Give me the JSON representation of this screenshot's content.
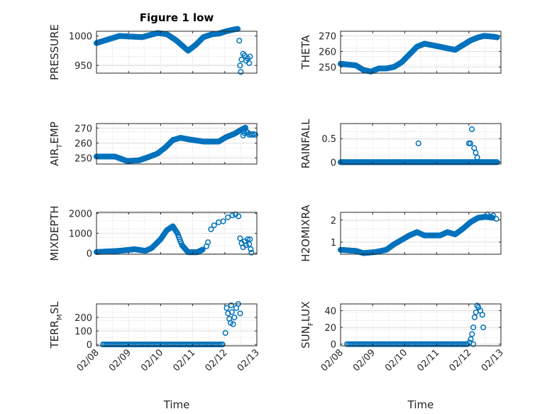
{
  "figure": {
    "background": "#ffffff",
    "marker_color": "#0072BD"
  },
  "chart_data": [
    {
      "type": "scatter",
      "title": "Figure 1 low",
      "ylabel": "PRESSURE",
      "ylabel_main": "PRESSURE",
      "ylabel_sub": "",
      "ylabel_tail": "",
      "ylim": [
        937,
        1008
      ],
      "yticks": [
        950,
        1000
      ],
      "ytick_labels": [
        "950",
        "1000"
      ],
      "xticks": [],
      "xlabel": "",
      "grid": true,
      "series": [
        {
          "dense": [
            [
              0,
              988
            ],
            [
              1.5,
              1000
            ],
            [
              3,
              998
            ],
            [
              4,
              1005
            ],
            [
              4.6,
              1003
            ],
            [
              5.2,
              993
            ],
            [
              6,
              975
            ],
            [
              6.5,
              985
            ],
            [
              7,
              998
            ],
            [
              7.6,
              1003
            ],
            [
              8,
              1004
            ],
            [
              8.5,
              1008
            ],
            [
              9,
              1011
            ],
            [
              9.3,
              1012
            ]
          ],
          "points": [
            [
              9.35,
              992
            ],
            [
              9.4,
              950
            ],
            [
              9.45,
              939
            ],
            [
              9.5,
              960
            ],
            [
              9.6,
              970
            ],
            [
              9.7,
              967
            ],
            [
              9.8,
              958
            ],
            [
              9.9,
              962
            ],
            [
              10,
              954
            ],
            [
              10.05,
              965
            ]
          ]
        }
      ]
    },
    {
      "type": "scatter",
      "title": "",
      "ylabel": "THETA",
      "ylabel_main": "THETA",
      "ylabel_sub": "",
      "ylabel_tail": "",
      "ylim": [
        246,
        273
      ],
      "yticks": [
        250,
        260,
        270
      ],
      "ytick_labels": [
        "250",
        "260",
        "270"
      ],
      "xticks": [],
      "xlabel": "",
      "grid": true,
      "series": [
        {
          "dense": [
            [
              0,
              252
            ],
            [
              1,
              251
            ],
            [
              1.5,
              248
            ],
            [
              2,
              247
            ],
            [
              2.5,
              249
            ],
            [
              3,
              249
            ],
            [
              3.5,
              250
            ],
            [
              4,
              253
            ],
            [
              4.5,
              258
            ],
            [
              5,
              263
            ],
            [
              5.5,
              265
            ],
            [
              6,
              264
            ],
            [
              7,
              262
            ],
            [
              7.5,
              261
            ],
            [
              8,
              264
            ],
            [
              8.5,
              267
            ],
            [
              9,
              269
            ],
            [
              9.4,
              270
            ],
            [
              10,
              269.5
            ],
            [
              10.3,
              269
            ]
          ],
          "points": []
        }
      ]
    },
    {
      "type": "scatter",
      "title": "",
      "ylabel": "AIR_TEMP",
      "ylabel_main": "AIR",
      "ylabel_sub": "T",
      "ylabel_tail": "EMP",
      "ylim": [
        246,
        273
      ],
      "yticks": [
        250,
        260,
        270
      ],
      "ytick_labels": [
        "250",
        "260",
        "270"
      ],
      "xticks": [],
      "xlabel": "",
      "grid": true,
      "series": [
        {
          "dense": [
            [
              0,
              251
            ],
            [
              1.2,
              251
            ],
            [
              2,
              248
            ],
            [
              2.8,
              248.5
            ],
            [
              3.5,
              251
            ],
            [
              4,
              253
            ],
            [
              4.5,
              257
            ],
            [
              5,
              262
            ],
            [
              5.5,
              263.5
            ],
            [
              6,
              262.5
            ],
            [
              7,
              261
            ],
            [
              8,
              261
            ],
            [
              8.5,
              264
            ],
            [
              9,
              266
            ],
            [
              9.5,
              269
            ],
            [
              9.8,
              270.5
            ]
          ],
          "points": [
            [
              9.6,
              265
            ],
            [
              9.7,
              266.5
            ],
            [
              9.8,
              268
            ],
            [
              9.9,
              267
            ],
            [
              10,
              265.5
            ],
            [
              10.1,
              266
            ],
            [
              10.2,
              265.5
            ],
            [
              10.3,
              266
            ],
            [
              10.4,
              265.5
            ]
          ]
        }
      ]
    },
    {
      "type": "scatter",
      "title": "",
      "ylabel": "RAINFALL",
      "ylabel_main": "RAINFALL",
      "ylabel_sub": "",
      "ylabel_tail": "",
      "ylim": [
        -0.04,
        0.82
      ],
      "yticks": [
        0,
        0.5
      ],
      "ytick_labels": [
        "0",
        "0.5"
      ],
      "xticks": [],
      "xlabel": "",
      "grid": true,
      "series": [
        {
          "dense": [
            [
              0,
              0
            ],
            [
              10.3,
              0
            ]
          ],
          "points": [
            [
              5.1,
              0.4
            ],
            [
              8.4,
              0.4
            ],
            [
              8.5,
              0.4
            ],
            [
              8.6,
              0.7
            ],
            [
              8.75,
              0.3
            ],
            [
              8.85,
              0.2
            ],
            [
              8.95,
              0.1
            ],
            [
              8.6,
              0.0
            ]
          ]
        }
      ]
    },
    {
      "type": "scatter",
      "title": "",
      "ylabel": "MIXDEPTH",
      "ylabel_main": "MIXDEPTH",
      "ylabel_sub": "",
      "ylabel_tail": "",
      "ylim": [
        -50,
        2050
      ],
      "yticks": [
        0,
        1000,
        2000
      ],
      "ytick_labels": [
        "0",
        "1000",
        "2000"
      ],
      "xticks": [],
      "xlabel": "",
      "grid": true,
      "series": [
        {
          "dense": [
            [
              0,
              60
            ],
            [
              1.5,
              120
            ],
            [
              2.5,
              200
            ],
            [
              3.2,
              120
            ],
            [
              3.6,
              250
            ],
            [
              4.2,
              700
            ],
            [
              4.6,
              1150
            ],
            [
              5,
              1350
            ],
            [
              5.3,
              1000
            ],
            [
              5.6,
              400
            ],
            [
              6,
              50
            ],
            [
              6.6,
              50
            ],
            [
              7,
              200
            ]
          ],
          "points": [
            [
              7.2,
              350
            ],
            [
              7.3,
              550
            ],
            [
              7.5,
              1200
            ],
            [
              7.7,
              1400
            ],
            [
              8,
              1550
            ],
            [
              8.3,
              1600
            ],
            [
              8.6,
              1800
            ],
            [
              8.9,
              1900
            ],
            [
              9.1,
              1950
            ],
            [
              9.3,
              1850
            ],
            [
              9.4,
              750
            ],
            [
              9.5,
              500
            ],
            [
              9.6,
              300
            ],
            [
              9.7,
              600
            ],
            [
              9.8,
              400
            ],
            [
              9.9,
              700
            ],
            [
              10,
              450
            ],
            [
              10.05,
              700
            ],
            [
              10.1,
              200
            ],
            [
              10.15,
              30
            ]
          ]
        }
      ]
    },
    {
      "type": "scatter",
      "title": "",
      "ylabel": "H2OMIXRA",
      "ylabel_main": "H2OMIXRA",
      "ylabel_sub": "",
      "ylabel_tail": "",
      "ylim": [
        0.45,
        2.35
      ],
      "yticks": [
        1,
        2
      ],
      "ytick_labels": [
        "1",
        "2"
      ],
      "xticks": [],
      "xlabel": "",
      "grid": true,
      "series": [
        {
          "dense": [
            [
              0,
              0.65
            ],
            [
              1,
              0.6
            ],
            [
              1.5,
              0.5
            ],
            [
              2.3,
              0.55
            ],
            [
              3,
              0.65
            ],
            [
              3.5,
              0.9
            ],
            [
              4,
              1.1
            ],
            [
              4.5,
              1.3
            ],
            [
              5,
              1.45
            ],
            [
              5.5,
              1.3
            ],
            [
              6.5,
              1.3
            ],
            [
              7,
              1.45
            ],
            [
              7.5,
              1.35
            ],
            [
              8,
              1.6
            ],
            [
              8.5,
              1.9
            ],
            [
              9,
              2.1
            ],
            [
              9.5,
              2.15
            ],
            [
              10,
              2.1
            ]
          ],
          "points": [
            [
              9.6,
              2.25
            ],
            [
              9.8,
              2.15
            ],
            [
              10,
              2.2
            ],
            [
              10.2,
              2.05
            ]
          ]
        }
      ]
    },
    {
      "type": "scatter",
      "title": "",
      "ylabel": "TERR_MSL",
      "ylabel_main": "TERR",
      "ylabel_sub": "M",
      "ylabel_tail": "SL",
      "ylim": [
        -10,
        300
      ],
      "yticks": [
        0,
        100,
        200
      ],
      "ytick_labels": [
        "0",
        "100",
        "200"
      ],
      "xticks": [
        0,
        1,
        2,
        3,
        4,
        5
      ],
      "xtick_labels": [
        "02/08",
        "02/09",
        "02/10",
        "02/11",
        "02/12",
        "02/13"
      ],
      "xlabel": "Time",
      "grid": true,
      "series": [
        {
          "dense": [
            [
              0.2,
              0
            ],
            [
              3.98,
              0
            ]
          ],
          "points": [
            [
              4.02,
              85
            ],
            [
              4.06,
              270
            ],
            [
              4.1,
              230
            ],
            [
              4.14,
              190
            ],
            [
              4.18,
              160
            ],
            [
              4.22,
              240
            ],
            [
              4.26,
              150
            ],
            [
              4.3,
              200
            ],
            [
              4.36,
              270
            ],
            [
              4.42,
              300
            ],
            [
              4.48,
              230
            ],
            [
              4.2,
              290
            ]
          ]
        }
      ]
    },
    {
      "type": "scatter",
      "title": "",
      "ylabel": "SUN_FLUX",
      "ylabel_main": "SUN",
      "ylabel_sub": "F",
      "ylabel_tail": "LUX",
      "ylim": [
        -2,
        48
      ],
      "yticks": [
        0,
        20,
        40
      ],
      "ytick_labels": [
        "0",
        "20",
        "40"
      ],
      "xticks": [
        0,
        1,
        2,
        3,
        4,
        5
      ],
      "xtick_labels": [
        "02/08",
        "02/09",
        "02/10",
        "02/11",
        "02/12",
        "02/13"
      ],
      "xlabel": "Time",
      "grid": true,
      "series": [
        {
          "dense": [
            [
              0.2,
              0
            ],
            [
              4.0,
              0
            ]
          ],
          "points": [
            [
              4.02,
              2
            ],
            [
              4.06,
              6
            ],
            [
              4.1,
              12
            ],
            [
              4.14,
              20
            ],
            [
              4.18,
              32
            ],
            [
              4.22,
              38
            ],
            [
              4.26,
              46
            ],
            [
              4.3,
              44
            ],
            [
              4.36,
              40
            ],
            [
              4.42,
              35
            ],
            [
              4.45,
              20
            ],
            [
              4.14,
              0
            ]
          ]
        }
      ]
    }
  ]
}
